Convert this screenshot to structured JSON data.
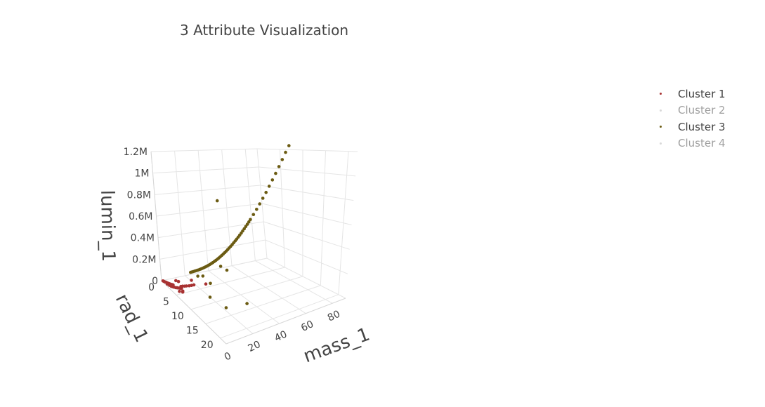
{
  "chart_data": {
    "type": "scatter3d",
    "title": "3 Attribute Visualization",
    "axes": {
      "x": {
        "label": "mass_1",
        "ticks": [
          "0",
          "20",
          "40",
          "60",
          "80"
        ],
        "range": [
          0,
          90
        ]
      },
      "y": {
        "label": "rad_1",
        "ticks": [
          "0",
          "5",
          "10",
          "15",
          "20"
        ],
        "range": [
          0,
          22
        ]
      },
      "z": {
        "label": "lumin_1",
        "ticks": [
          "0",
          "0.2M",
          "0.4M",
          "0.6M",
          "0.8M",
          "1M",
          "1.2M"
        ],
        "range": [
          0,
          1200000
        ]
      }
    },
    "legend": {
      "position": "top-right"
    },
    "series": [
      {
        "name": "Cluster 1",
        "color": "#a83232",
        "visible": true,
        "points": [
          [
            0.5,
            0.3,
            5000
          ],
          [
            0.7,
            0.5,
            6000
          ],
          [
            1.0,
            0.8,
            7000
          ],
          [
            1.3,
            1.0,
            9000
          ],
          [
            1.6,
            1.3,
            11000
          ],
          [
            2.0,
            1.6,
            13000
          ],
          [
            2.3,
            1.9,
            15000
          ],
          [
            2.6,
            2.1,
            17000
          ],
          [
            3.0,
            2.4,
            20000
          ],
          [
            3.4,
            2.6,
            22000
          ],
          [
            1.2,
            1.5,
            5000
          ],
          [
            1.8,
            2.0,
            6000
          ],
          [
            2.2,
            2.5,
            8000
          ],
          [
            2.8,
            2.8,
            10000
          ],
          [
            3.2,
            3.0,
            12000
          ],
          [
            3.8,
            3.3,
            14000
          ],
          [
            4.5,
            3.5,
            16000
          ],
          [
            5.0,
            3.7,
            18000
          ],
          [
            5.8,
            4.0,
            21000
          ],
          [
            6.5,
            4.2,
            25000
          ],
          [
            7.0,
            3.8,
            30000
          ],
          [
            8.0,
            4.0,
            35000
          ],
          [
            9.0,
            4.3,
            40000
          ],
          [
            10.0,
            4.5,
            45000
          ],
          [
            11.5,
            4.8,
            50000
          ],
          [
            13.0,
            5.0,
            55000
          ],
          [
            14.5,
            5.2,
            60000
          ],
          [
            15.5,
            4.0,
            70000
          ],
          [
            20.0,
            7.0,
            100000
          ],
          [
            8.5,
            1.5,
            20000
          ],
          [
            9.5,
            2.0,
            22000
          ],
          [
            4.0,
            4.5,
            10000
          ],
          [
            5.5,
            5.0,
            12000
          ],
          [
            6.0,
            4.8,
            15000
          ]
        ]
      },
      {
        "name": "Cluster 2",
        "color": "#b4b4b4",
        "visible": false,
        "points": []
      },
      {
        "name": "Cluster 3",
        "color": "#6b5b12",
        "visible": true,
        "points": [
          [
            20,
            2.0,
            80000
          ],
          [
            21,
            2.1,
            84000
          ],
          [
            22,
            2.2,
            88000
          ],
          [
            23,
            2.3,
            92000
          ],
          [
            24,
            2.4,
            96000
          ],
          [
            25,
            2.5,
            100000
          ],
          [
            26,
            2.6,
            105000
          ],
          [
            27,
            2.7,
            110000
          ],
          [
            28,
            2.8,
            116000
          ],
          [
            29,
            2.9,
            122000
          ],
          [
            30,
            3.0,
            128000
          ],
          [
            31,
            3.1,
            135000
          ],
          [
            32,
            3.2,
            142000
          ],
          [
            33,
            3.3,
            150000
          ],
          [
            34,
            3.4,
            158000
          ],
          [
            35,
            3.5,
            167000
          ],
          [
            36,
            3.6,
            176000
          ],
          [
            37,
            3.7,
            186000
          ],
          [
            38,
            3.8,
            196000
          ],
          [
            39,
            3.9,
            207000
          ],
          [
            40,
            4.0,
            218000
          ],
          [
            41,
            4.1,
            230000
          ],
          [
            42,
            4.2,
            242000
          ],
          [
            43,
            4.3,
            255000
          ],
          [
            44,
            4.4,
            268000
          ],
          [
            45,
            4.5,
            282000
          ],
          [
            46,
            4.6,
            296000
          ],
          [
            47,
            4.7,
            311000
          ],
          [
            48,
            4.8,
            326000
          ],
          [
            49,
            4.9,
            342000
          ],
          [
            50,
            5.0,
            358000
          ],
          [
            51,
            5.1,
            375000
          ],
          [
            52,
            5.2,
            392000
          ],
          [
            53,
            5.3,
            410000
          ],
          [
            54,
            5.4,
            428000
          ],
          [
            55,
            5.5,
            447000
          ],
          [
            56,
            5.6,
            466000
          ],
          [
            57,
            5.7,
            486000
          ],
          [
            58,
            5.8,
            506000
          ],
          [
            59,
            5.9,
            527000
          ],
          [
            60,
            6.0,
            548000
          ],
          [
            62,
            6.2,
            592000
          ],
          [
            64,
            6.4,
            638000
          ],
          [
            66,
            6.6,
            686000
          ],
          [
            68,
            6.8,
            736000
          ],
          [
            70,
            7.0,
            788000
          ],
          [
            72,
            7.2,
            842000
          ],
          [
            74,
            7.4,
            898000
          ],
          [
            76,
            7.6,
            956000
          ],
          [
            78,
            7.8,
            1016000
          ],
          [
            80,
            8.0,
            1078000
          ],
          [
            82,
            8.2,
            1142000
          ],
          [
            84,
            8.4,
            1200000
          ],
          [
            30,
            2.0,
            20000
          ],
          [
            26,
            6.0,
            60000
          ],
          [
            27,
            1.5,
            15000
          ],
          [
            42,
            3.0,
            700000
          ],
          [
            40,
            4.0,
            130000
          ],
          [
            35,
            14.0,
            30000
          ],
          [
            18,
            9.0,
            30000
          ],
          [
            21,
            13.0,
            20000
          ],
          [
            45,
            4.0,
            80000
          ]
        ]
      },
      {
        "name": "Cluster 4",
        "color": "#b4b4b4",
        "visible": false,
        "points": []
      }
    ]
  }
}
